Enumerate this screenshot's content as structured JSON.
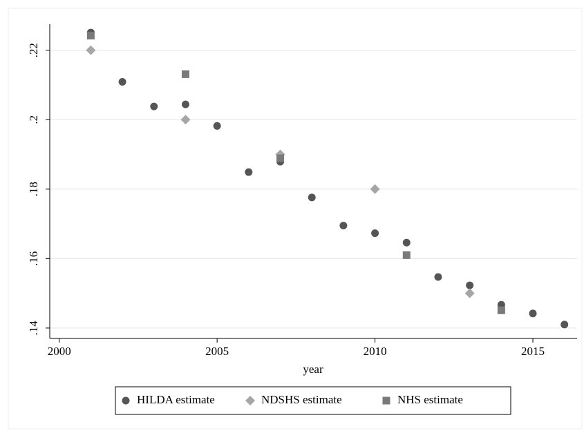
{
  "chart_data": {
    "type": "scatter",
    "x_label": "year",
    "xlim": [
      1999.7,
      2016.4
    ],
    "ylim": [
      0.137,
      0.2275
    ],
    "xticks": [
      2000,
      2005,
      2010,
      2015
    ],
    "yticks": [
      {
        "value": 0.14,
        "label": ".14"
      },
      {
        "value": 0.16,
        "label": ".16"
      },
      {
        "value": 0.18,
        "label": ".18"
      },
      {
        "value": 0.2,
        "label": ".2"
      },
      {
        "value": 0.22,
        "label": ".22"
      }
    ],
    "grid": true,
    "legend": "bottom",
    "series": [
      {
        "name": "HILDA estimate",
        "color": "#555555",
        "marker": "circle",
        "x": [
          2001,
          2002,
          2003,
          2004,
          2005,
          2006,
          2007,
          2008,
          2009,
          2010,
          2011,
          2012,
          2013,
          2014,
          2015,
          2016
        ],
        "values": [
          0.2251,
          0.2109,
          0.2038,
          0.2044,
          0.1982,
          0.1849,
          0.1879,
          0.1776,
          0.1695,
          0.1673,
          0.1646,
          0.1547,
          0.1523,
          0.1467,
          0.1442,
          0.141
        ]
      },
      {
        "name": "NDSHS estimate",
        "color": "#a6a6a6",
        "marker": "diamond",
        "x": [
          2001,
          2004,
          2007,
          2010,
          2013
        ],
        "values": [
          0.22,
          0.2,
          0.19,
          0.18,
          0.15
        ]
      },
      {
        "name": "NHS estimate",
        "color": "#7a7a7a",
        "marker": "square",
        "x": [
          2001,
          2004,
          2007,
          2011,
          2014
        ],
        "values": [
          0.2242,
          0.2131,
          0.1889,
          0.161,
          0.1451
        ]
      }
    ]
  }
}
